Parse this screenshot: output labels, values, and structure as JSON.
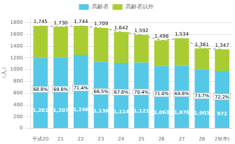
{
  "chart_data": {
    "type": "bar",
    "stacked": true,
    "categories": [
      "平成20",
      "21",
      "22",
      "23",
      "24",
      "25",
      "26",
      "27",
      "28",
      "29(年)"
    ],
    "ylabel": "（人）",
    "ylim": [
      0,
      1900
    ],
    "yticks": [
      0,
      200,
      400,
      600,
      800,
      1000,
      1200,
      1400,
      1600,
      1800
    ],
    "grid": true,
    "legend": "top",
    "series": [
      {
        "name": "高齢者",
        "color": "#55c8e8",
        "values": [
          1201,
          1207,
          1246,
          1136,
          1114,
          1121,
          1063,
          1070,
          1003,
          972
        ],
        "data_labels": true,
        "value_labels": [
          "1,201",
          "1,207",
          "1,246",
          "1,136",
          "1,114",
          "1,121",
          "1,063",
          "1,070",
          "1,003",
          "972"
        ]
      },
      {
        "name": "高齢者以外",
        "color": "#aacc33",
        "values": [
          544,
          523,
          498,
          573,
          528,
          471,
          435,
          464,
          358,
          375
        ]
      },
      {
        "type": "line",
        "line_style": "dashed",
        "color": "#888888",
        "values": [
          1745,
          1730,
          1744,
          1709,
          1642,
          1592,
          1498,
          1534,
          1361,
          1347
        ],
        "data_labels": true,
        "value_labels": [
          "1,745",
          "1,730",
          "1,744",
          "1,709",
          "1,642",
          "1,592",
          "1,498",
          "1,534",
          "1,361",
          "1,347"
        ]
      }
    ],
    "annotations": [
      {
        "category": "平成20",
        "text": "68.8%"
      },
      {
        "category": "21",
        "text": "69.8%"
      },
      {
        "category": "22",
        "text": "71.4%"
      },
      {
        "category": "23",
        "text": "66.5%"
      },
      {
        "category": "24",
        "text": "67.8%"
      },
      {
        "category": "25",
        "text": "70.4%"
      },
      {
        "category": "26",
        "text": "71.0%"
      },
      {
        "category": "27",
        "text": "69.8%"
      },
      {
        "category": "28",
        "text": "73.7%"
      },
      {
        "category": "29(年)",
        "text": "72.2%"
      }
    ]
  }
}
